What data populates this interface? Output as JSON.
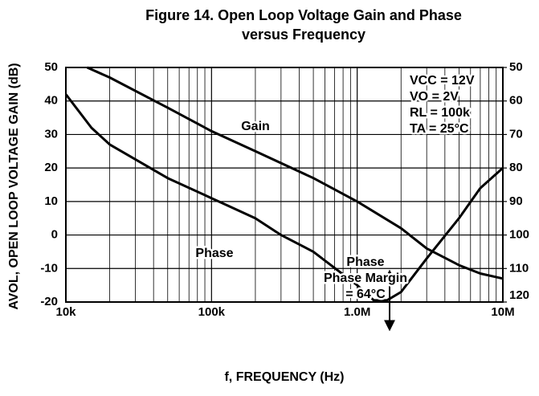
{
  "chart_data": {
    "type": "line",
    "title": [
      "Figure 14. Open Loop Voltage Gain and Phase",
      "versus Frequency"
    ],
    "x_label": "f, FREQUENCY (Hz)",
    "y_label": "AVOL, OPEN LOOP VOLTAGE GAIN (dB)",
    "xscale": "log",
    "grid": true,
    "minor_grid": true,
    "xlim": [
      10000,
      10000000
    ],
    "xticks": [
      {
        "value": 10000,
        "label": "10k"
      },
      {
        "value": 100000,
        "label": "100k"
      },
      {
        "value": 1000000,
        "label": "1.0M"
      },
      {
        "value": 10000000,
        "label": "10M"
      }
    ],
    "ylim": [
      -20,
      50
    ],
    "yticks": [
      -20,
      -10,
      0,
      10,
      20,
      30,
      40,
      50
    ],
    "y2lim": [
      120,
      50
    ],
    "y2ticks": [
      50,
      60,
      70,
      80,
      90,
      100,
      110,
      120
    ],
    "series": [
      {
        "name": "Gain",
        "color": "#000000",
        "x": [
          14000,
          20000,
          50000,
          100000,
          200000,
          500000,
          1000000,
          2000000,
          3000000,
          5000000,
          7000000,
          10000000
        ],
        "values": [
          50,
          47,
          38,
          31,
          25,
          17,
          10,
          2,
          -4,
          -9,
          -11.5,
          -13
        ]
      },
      {
        "name": "Phase",
        "color": "#000000",
        "axis": "y2",
        "x": [
          10000,
          15000,
          20000,
          50000,
          100000,
          200000,
          300000,
          500000,
          1000000,
          1300000,
          1600000,
          2000000,
          3000000,
          5000000,
          7000000,
          10000000
        ],
        "values": [
          58,
          68,
          73,
          83,
          89,
          95,
          100,
          105,
          115,
          119.5,
          119.5,
          117,
          107,
          95,
          86,
          80
        ]
      }
    ],
    "annotations": [
      "Phase Margin",
      "= 64°C"
    ],
    "conditions": [
      "VCC = 12V",
      "VO = 2V",
      "RL = 100k",
      "TA = 25°C"
    ]
  }
}
